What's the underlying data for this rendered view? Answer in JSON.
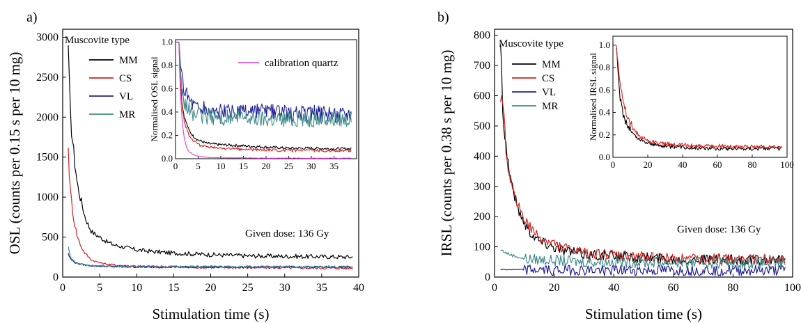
{
  "chart_data": [
    {
      "panel_label": "a)",
      "type": "line",
      "xlabel": "Stimulation time (s)",
      "ylabel": "OSL (counts per 0.15 s per 10 mg)",
      "xlim": [
        0,
        40
      ],
      "ylim": [
        0,
        3100
      ],
      "xticks": [
        0,
        5,
        10,
        15,
        20,
        25,
        30,
        35,
        40
      ],
      "yticks": [
        0,
        500,
        1000,
        1500,
        2000,
        2500,
        3000
      ],
      "grid": false,
      "legend_title": "Muscovite type",
      "legend_position": "top-left",
      "annotation": "Given dose: 136 Gy",
      "series": [
        {
          "name": "MM",
          "color": "#000000",
          "x": [
            0.75,
            1,
            1.5,
            2,
            2.5,
            3,
            3.5,
            4,
            5,
            6,
            7,
            8,
            10,
            12,
            15,
            20,
            25,
            30,
            35,
            39.2
          ],
          "y": [
            2900,
            2050,
            1550,
            1150,
            950,
            760,
            640,
            560,
            500,
            440,
            400,
            380,
            340,
            320,
            300,
            280,
            265,
            260,
            255,
            250
          ]
        },
        {
          "name": "CS",
          "color": "#d62020",
          "x": [
            0.75,
            1,
            1.5,
            2,
            2.5,
            3,
            3.5,
            4,
            5,
            6,
            7,
            8,
            10,
            12,
            15,
            20,
            25,
            30,
            35,
            39.2
          ],
          "y": [
            1620,
            1100,
            720,
            500,
            380,
            300,
            250,
            210,
            180,
            160,
            150,
            145,
            135,
            130,
            125,
            120,
            118,
            115,
            112,
            110
          ]
        },
        {
          "name": "VL",
          "color": "#1f1f9a",
          "x": [
            0.75,
            1,
            1.5,
            2,
            3,
            4,
            5,
            7,
            10,
            15,
            20,
            25,
            30,
            35,
            39.2
          ],
          "y": [
            300,
            230,
            190,
            170,
            150,
            140,
            135,
            130,
            128,
            126,
            125,
            125,
            125,
            125,
            125
          ]
        },
        {
          "name": "MR",
          "color": "#3f8a8a",
          "x": [
            0.75,
            1,
            1.5,
            2,
            3,
            4,
            5,
            7,
            10,
            15,
            20,
            25,
            30,
            35,
            39.2
          ],
          "y": [
            380,
            260,
            200,
            175,
            155,
            145,
            140,
            135,
            132,
            130,
            130,
            128,
            128,
            128,
            128
          ]
        }
      ],
      "inset": {
        "ylabel": "Normalised OSL signal",
        "xlim": [
          0,
          40
        ],
        "ylim": [
          0,
          1.02
        ],
        "xticks": [
          0,
          5,
          10,
          15,
          20,
          25,
          30,
          35
        ],
        "yticks": [
          0.0,
          0.2,
          0.4,
          0.6,
          0.8,
          1.0
        ],
        "legend_entry": "calibration quartz",
        "series": [
          {
            "name": "MM",
            "color": "#000000",
            "x": [
              0.75,
              1,
              1.5,
              2,
              3,
              4,
              5,
              7,
              10,
              15,
              20,
              25,
              30,
              35,
              38.8
            ],
            "y": [
              1.0,
              0.7,
              0.45,
              0.35,
              0.24,
              0.19,
              0.16,
              0.13,
              0.12,
              0.11,
              0.1,
              0.09,
              0.09,
              0.085,
              0.085
            ]
          },
          {
            "name": "CS",
            "color": "#d62020",
            "x": [
              0.75,
              1,
              1.5,
              2,
              3,
              4,
              5,
              7,
              10,
              15,
              20,
              25,
              30,
              35,
              38.8
            ],
            "y": [
              1.0,
              0.68,
              0.43,
              0.31,
              0.2,
              0.15,
              0.12,
              0.1,
              0.09,
              0.08,
              0.075,
              0.07,
              0.07,
              0.068,
              0.068
            ]
          },
          {
            "name": "VL",
            "color": "#1f1f9a",
            "x": [
              0.75,
              1,
              1.5,
              2,
              3,
              4,
              5,
              7,
              10,
              15,
              20,
              25,
              30,
              35,
              38.8
            ],
            "y": [
              1.0,
              0.8,
              0.67,
              0.6,
              0.52,
              0.47,
              0.44,
              0.42,
              0.4,
              0.4,
              0.4,
              0.39,
              0.39,
              0.38,
              0.4
            ]
          },
          {
            "name": "MR",
            "color": "#3f8a8a",
            "x": [
              0.75,
              1,
              1.5,
              2,
              3,
              4,
              5,
              7,
              10,
              15,
              20,
              25,
              30,
              35,
              38.8
            ],
            "y": [
              1.0,
              0.72,
              0.55,
              0.47,
              0.42,
              0.38,
              0.37,
              0.36,
              0.35,
              0.35,
              0.34,
              0.34,
              0.34,
              0.34,
              0.34
            ]
          },
          {
            "name": "calibration quartz",
            "color": "#d93dd0",
            "x": [
              0.75,
              1,
              1.5,
              2,
              2.5,
              3,
              4,
              5,
              7,
              10,
              20,
              30,
              38.8
            ],
            "y": [
              1.0,
              0.62,
              0.3,
              0.16,
              0.09,
              0.06,
              0.035,
              0.02,
              0.012,
              0.008,
              0.005,
              0.004,
              0.004
            ]
          }
        ]
      }
    },
    {
      "panel_label": "b)",
      "type": "line",
      "xlabel": "Stimulation time (s)",
      "ylabel": "IRSL (counts per 0.38 s per 10 mg)",
      "xlim": [
        0,
        100
      ],
      "ylim": [
        0,
        820
      ],
      "xticks": [
        0,
        20,
        40,
        60,
        80,
        100
      ],
      "yticks": [
        0,
        100,
        200,
        300,
        400,
        500,
        600,
        700,
        800
      ],
      "grid": false,
      "legend_title": "Muscovite type",
      "legend_position": "top-left",
      "annotation": "Given dose: 136 Gy",
      "series": [
        {
          "name": "MM",
          "color": "#000000",
          "x": [
            2,
            3,
            4,
            5,
            6,
            8,
            10,
            12,
            15,
            20,
            25,
            30,
            40,
            50,
            60,
            70,
            80,
            90,
            97.5
          ],
          "y": [
            770,
            520,
            420,
            350,
            300,
            220,
            180,
            150,
            120,
            100,
            85,
            75,
            70,
            65,
            60,
            58,
            56,
            55,
            55
          ]
        },
        {
          "name": "CS",
          "color": "#d62020",
          "x": [
            2,
            3,
            4,
            5,
            6,
            8,
            10,
            12,
            15,
            20,
            25,
            30,
            40,
            50,
            60,
            70,
            80,
            90,
            97.5
          ],
          "y": [
            580,
            530,
            420,
            330,
            280,
            240,
            190,
            160,
            130,
            110,
            90,
            80,
            72,
            68,
            62,
            60,
            58,
            57,
            55
          ]
        },
        {
          "name": "VL",
          "color": "#1f1f9a",
          "x": [
            2,
            10,
            20,
            30,
            40,
            50,
            60,
            70,
            80,
            90,
            97.5
          ],
          "y": [
            25,
            24,
            23,
            23,
            22,
            22,
            22,
            22,
            22,
            22,
            22
          ]
        },
        {
          "name": "MR",
          "color": "#3f8a8a",
          "x": [
            2,
            5,
            10,
            20,
            30,
            40,
            50,
            60,
            70,
            80,
            90,
            97.5
          ],
          "y": [
            90,
            75,
            60,
            55,
            50,
            50,
            48,
            48,
            47,
            47,
            46,
            46
          ]
        }
      ],
      "inset": {
        "ylabel": "Normalised IRSL signal",
        "xlim": [
          0,
          100
        ],
        "ylim": [
          0,
          1.08
        ],
        "xticks": [
          0,
          20,
          40,
          60,
          80,
          100
        ],
        "yticks": [
          0.0,
          0.2,
          0.4,
          0.6,
          0.8,
          1.0
        ],
        "series": [
          {
            "name": "MM",
            "color": "#000000",
            "x": [
              2,
              3,
              4,
              5,
              6,
              8,
              10,
              12,
              15,
              20,
              25,
              30,
              40,
              50,
              60,
              70,
              80,
              90,
              97
            ],
            "y": [
              0.98,
              0.7,
              0.55,
              0.45,
              0.38,
              0.3,
              0.25,
              0.2,
              0.16,
              0.13,
              0.11,
              0.1,
              0.09,
              0.085,
              0.08,
              0.08,
              0.08,
              0.08,
              0.08
            ]
          },
          {
            "name": "CS",
            "color": "#d62020",
            "x": [
              2,
              3,
              4,
              5,
              6,
              8,
              10,
              12,
              15,
              20,
              25,
              30,
              40,
              50,
              60,
              70,
              80,
              90,
              97
            ],
            "y": [
              1.0,
              0.85,
              0.7,
              0.58,
              0.48,
              0.38,
              0.3,
              0.25,
              0.19,
              0.15,
              0.13,
              0.12,
              0.11,
              0.1,
              0.1,
              0.095,
              0.095,
              0.09,
              0.09
            ]
          }
        ]
      }
    }
  ]
}
